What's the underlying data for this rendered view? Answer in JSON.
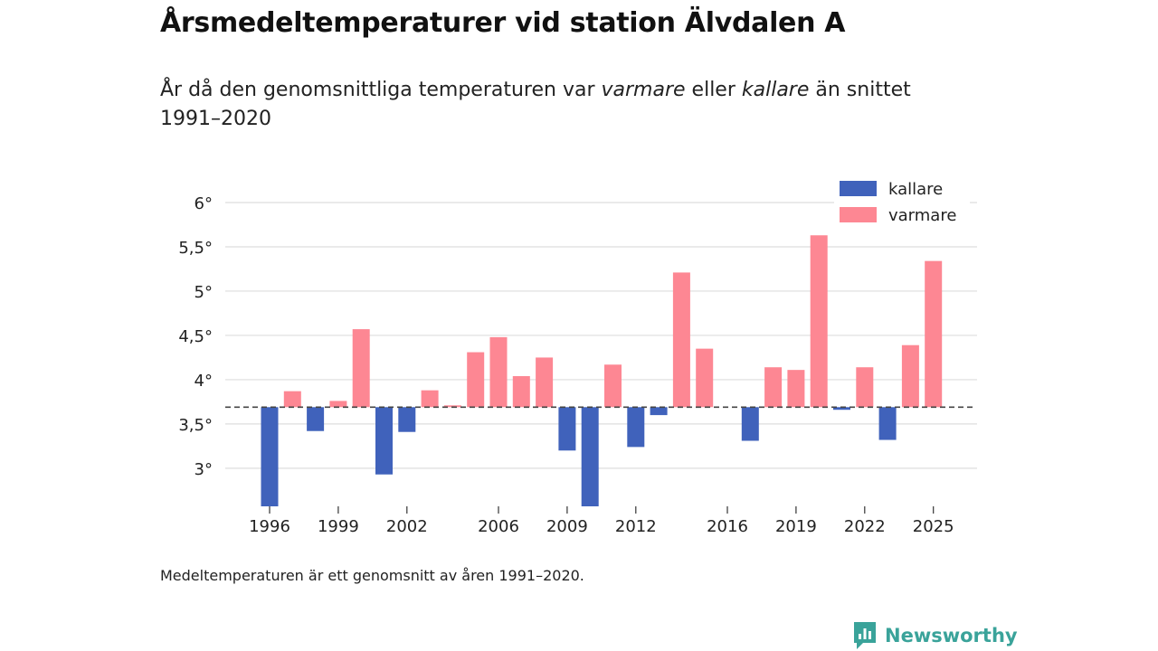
{
  "title": "Årsmedeltemperaturer vid station Älvdalen A",
  "subtitle": {
    "before": "År då den genomsnittliga temperaturen var ",
    "warm_word": "varmare",
    "middle": " eller ",
    "cold_word": "kallare",
    "after": " än snittet 1991–2020"
  },
  "footnote": "Medeltemperaturen är ett genomsnitt av åren 1991–2020.",
  "brand": {
    "name": "Newsworthy",
    "icon": "newsworthy-logo-icon",
    "color": "#3aa39a"
  },
  "colors": {
    "cold": "#4062bb",
    "warm": "#fd8793",
    "grid": "#dddddd",
    "baseline": "#444444",
    "text": "#222222"
  },
  "chart_data": {
    "type": "bar",
    "title": "Årsmedeltemperaturer vid station Älvdalen A",
    "baseline": 3.69,
    "ylim": [
      2.57,
      6.0
    ],
    "y_ticks": [
      {
        "value": 6.0,
        "label": "6°"
      },
      {
        "value": 5.5,
        "label": "5,5°"
      },
      {
        "value": 5.0,
        "label": "5°"
      },
      {
        "value": 4.5,
        "label": "4,5°"
      },
      {
        "value": 4.0,
        "label": "4°"
      },
      {
        "value": 3.5,
        "label": "3,5°"
      },
      {
        "value": 3.0,
        "label": "3°"
      }
    ],
    "x_ticks": [
      1996,
      1999,
      2002,
      2006,
      2009,
      2012,
      2016,
      2019,
      2022,
      2025
    ],
    "xlim": [
      1995,
      2026
    ],
    "legend": [
      {
        "key": "cold",
        "label": "kallare"
      },
      {
        "key": "warm",
        "label": "varmare"
      }
    ],
    "legend_position": "top-right",
    "series": [
      {
        "year": 1996,
        "value": 2.57
      },
      {
        "year": 1997,
        "value": 3.87
      },
      {
        "year": 1998,
        "value": 3.42
      },
      {
        "year": 1999,
        "value": 3.76
      },
      {
        "year": 2000,
        "value": 4.57
      },
      {
        "year": 2001,
        "value": 2.93
      },
      {
        "year": 2002,
        "value": 3.41
      },
      {
        "year": 2003,
        "value": 3.88
      },
      {
        "year": 2004,
        "value": 3.71
      },
      {
        "year": 2005,
        "value": 4.31
      },
      {
        "year": 2006,
        "value": 4.48
      },
      {
        "year": 2007,
        "value": 4.04
      },
      {
        "year": 2008,
        "value": 4.25
      },
      {
        "year": 2009,
        "value": 3.2
      },
      {
        "year": 2010,
        "value": 2.57
      },
      {
        "year": 2011,
        "value": 4.17
      },
      {
        "year": 2012,
        "value": 3.24
      },
      {
        "year": 2013,
        "value": 3.6
      },
      {
        "year": 2014,
        "value": 5.21
      },
      {
        "year": 2015,
        "value": 4.35
      },
      {
        "year": 2017,
        "value": 3.31
      },
      {
        "year": 2018,
        "value": 4.14
      },
      {
        "year": 2019,
        "value": 4.11
      },
      {
        "year": 2020,
        "value": 5.63
      },
      {
        "year": 2021,
        "value": 3.66
      },
      {
        "year": 2022,
        "value": 4.14
      },
      {
        "year": 2023,
        "value": 3.32
      },
      {
        "year": 2024,
        "value": 4.39
      },
      {
        "year": 2025,
        "value": 5.34
      }
    ]
  }
}
